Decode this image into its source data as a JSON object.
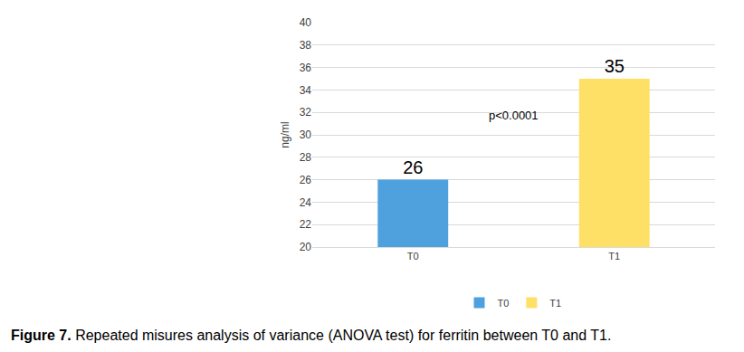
{
  "chart_data": {
    "type": "bar",
    "caption": "Figure 7. Repeated misures analysis of variance (ANOVA test) for ferritin between T0 and T1.",
    "y_label": "ng/ml",
    "categories": [
      "T0",
      "T1"
    ],
    "values": [
      26,
      35
    ],
    "colors": [
      "#4fa1dd",
      "#ffe066"
    ],
    "ylim": [
      20,
      40
    ],
    "yticks": [
      20,
      22,
      24,
      26,
      28,
      30,
      32,
      34,
      36,
      38,
      40
    ],
    "grid": true,
    "data_labels": true,
    "legend": "bottom",
    "annotations": [
      "p<0.0001"
    ]
  }
}
